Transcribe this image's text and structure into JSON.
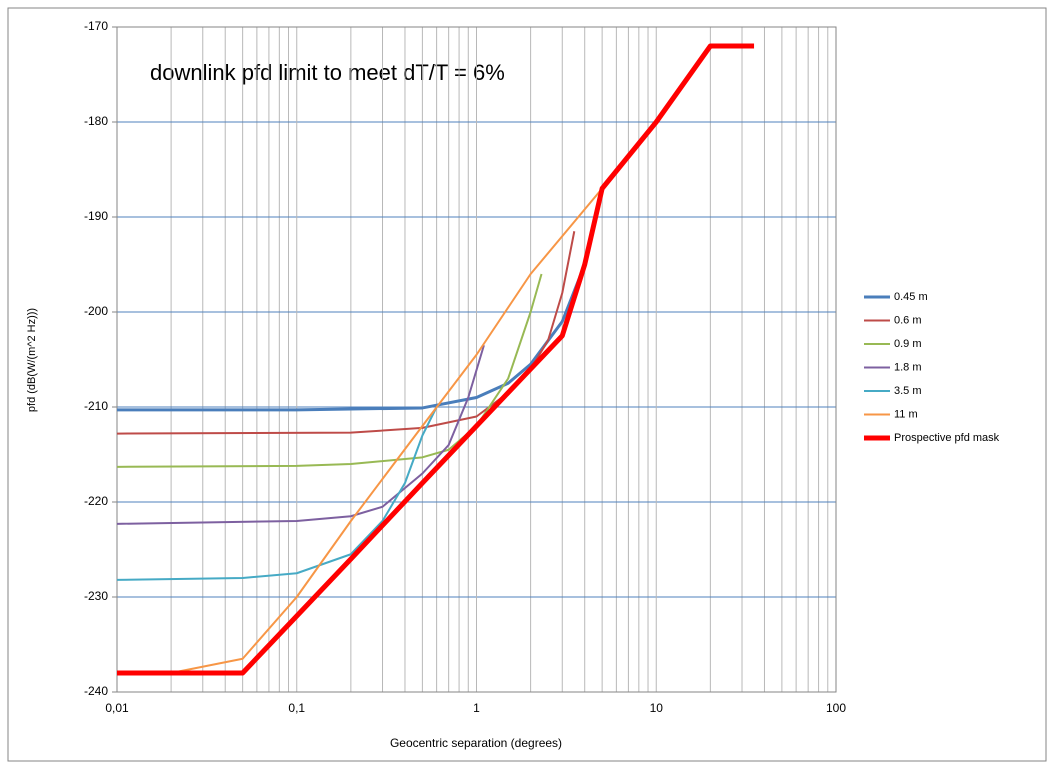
{
  "chart_data": {
    "type": "line",
    "title": "downlink pfd limit to meet dT/T = 6%",
    "x_label": "Geocentric separation (degrees)",
    "y_label": "pfd (dB(W/(m^2 Hz)))",
    "x_scale": "log",
    "xlim": [
      0.01,
      100
    ],
    "xticks": [
      {
        "value": 0.01,
        "label": "0,01"
      },
      {
        "value": 0.1,
        "label": "0,1"
      },
      1,
      10,
      100
    ],
    "ylim": [
      -240,
      -170
    ],
    "yticks": [
      -240,
      -230,
      -220,
      -210,
      -200,
      -190,
      -180,
      -170
    ],
    "grid": true,
    "minor_grid": true,
    "legend": "right",
    "series": [
      {
        "name": "0.45 m",
        "color": "#4a7ebb",
        "width": 3,
        "x": [
          0.01,
          0.1,
          0.5,
          1,
          1.5,
          2,
          3,
          4,
          5
        ],
        "values": [
          -210.3,
          -210.3,
          -210.1,
          -209,
          -207.5,
          -205.5,
          -201,
          -195,
          -187
        ]
      },
      {
        "name": "0.6 m",
        "color": "#be4b48",
        "width": 2,
        "x": [
          0.01,
          0.2,
          0.5,
          1,
          1.5,
          2,
          2.5,
          3,
          3.5
        ],
        "values": [
          -212.8,
          -212.7,
          -212.2,
          -211,
          -208.5,
          -206,
          -203,
          -198,
          -191.5
        ]
      },
      {
        "name": "0.9 m",
        "color": "#98b954",
        "width": 2,
        "x": [
          0.01,
          0.1,
          0.2,
          0.5,
          0.7,
          1,
          1.5,
          2,
          2.3
        ],
        "values": [
          -216.3,
          -216.2,
          -216,
          -215.3,
          -214.5,
          -212,
          -207,
          -200,
          -196
        ]
      },
      {
        "name": "1.8 m",
        "color": "#7d60a0",
        "width": 2,
        "x": [
          0.01,
          0.1,
          0.2,
          0.3,
          0.5,
          0.7,
          0.9,
          1.1
        ],
        "values": [
          -222.3,
          -222,
          -221.5,
          -220.5,
          -217,
          -214,
          -209,
          -203.5
        ]
      },
      {
        "name": "3.5 m",
        "color": "#46aac5",
        "width": 2,
        "x": [
          0.01,
          0.05,
          0.1,
          0.2,
          0.3,
          0.4,
          0.5,
          0.6
        ],
        "values": [
          -228.2,
          -228,
          -227.5,
          -225.5,
          -222,
          -218,
          -213,
          -210
        ]
      },
      {
        "name": "11 m",
        "color": "#f79646",
        "width": 2,
        "x": [
          0.01,
          0.02,
          0.05,
          0.1,
          0.2,
          0.5,
          1,
          2,
          5
        ],
        "values": [
          -238,
          -238,
          -236.5,
          -230,
          -222,
          -212,
          -204.5,
          -196,
          -187
        ]
      },
      {
        "name": "Prospective pfd mask",
        "color": "#ff0000",
        "width": 5,
        "x": [
          0.01,
          0.05,
          0.1,
          0.2,
          0.5,
          1,
          2,
          3,
          4,
          5,
          10,
          20,
          35
        ],
        "values": [
          -238,
          -238,
          -232,
          -226,
          -218,
          -212,
          -206,
          -202.5,
          -195,
          -187,
          -180,
          -172,
          -172
        ]
      }
    ]
  }
}
